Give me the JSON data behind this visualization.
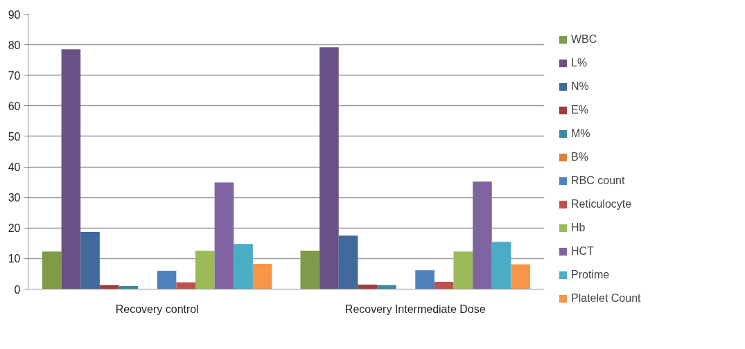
{
  "chart_data": {
    "type": "bar",
    "categories": [
      "Recovery control",
      "Recovery Intermediate Dose"
    ],
    "ylim": [
      0,
      90
    ],
    "yticks": [
      0,
      10,
      20,
      30,
      40,
      50,
      60,
      70,
      80,
      90
    ],
    "grid": "y",
    "legend": "right",
    "series": [
      {
        "name": "WBC",
        "color": "#7f9a48",
        "values": [
          12.3,
          12.6
        ]
      },
      {
        "name": "L%",
        "color": "#695185",
        "values": [
          78.5,
          79.2
        ]
      },
      {
        "name": "N%",
        "color": "#3f6a9b",
        "values": [
          18.7,
          17.5
        ]
      },
      {
        "name": "E%",
        "color": "#9e3e3c",
        "values": [
          1.3,
          1.5
        ]
      },
      {
        "name": "M%",
        "color": "#3a8aa0",
        "values": [
          1.0,
          1.3
        ]
      },
      {
        "name": "B%",
        "color": "#d9803a",
        "values": [
          0,
          0
        ]
      },
      {
        "name": "RBC count",
        "color": "#4f81bd",
        "values": [
          6.0,
          6.2
        ]
      },
      {
        "name": "Reticulocyte",
        "color": "#c0504d",
        "values": [
          2.2,
          2.4
        ]
      },
      {
        "name": "Hb",
        "color": "#9bbb59",
        "values": [
          12.6,
          12.3
        ]
      },
      {
        "name": "HCT",
        "color": "#8064a2",
        "values": [
          34.9,
          35.2
        ]
      },
      {
        "name": "Protime",
        "color": "#4bacc6",
        "values": [
          14.8,
          15.5
        ]
      },
      {
        "name": "Platelet Count",
        "color": "#f79646",
        "values": [
          8.3,
          8.1
        ]
      }
    ]
  }
}
